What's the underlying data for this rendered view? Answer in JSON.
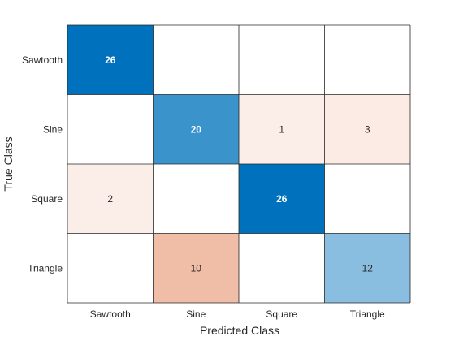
{
  "chart_data": {
    "type": "heatmap",
    "subtype": "confusion-matrix",
    "title": "",
    "xlabel": "Predicted Class",
    "ylabel": "True Class",
    "x_categories": [
      "Sawtooth",
      "Sine",
      "Square",
      "Triangle"
    ],
    "y_categories": [
      "Sawtooth",
      "Sine",
      "Square",
      "Triangle"
    ],
    "matrix": [
      [
        26,
        null,
        null,
        null
      ],
      [
        null,
        20,
        1,
        3
      ],
      [
        2,
        null,
        26,
        null
      ],
      [
        null,
        10,
        null,
        12
      ]
    ],
    "diagonal_color": "#0072bd",
    "off_diagonal_color": "#d95319",
    "empty_color": "#ffffff",
    "grid_line_color": "#262626",
    "grid": true
  }
}
